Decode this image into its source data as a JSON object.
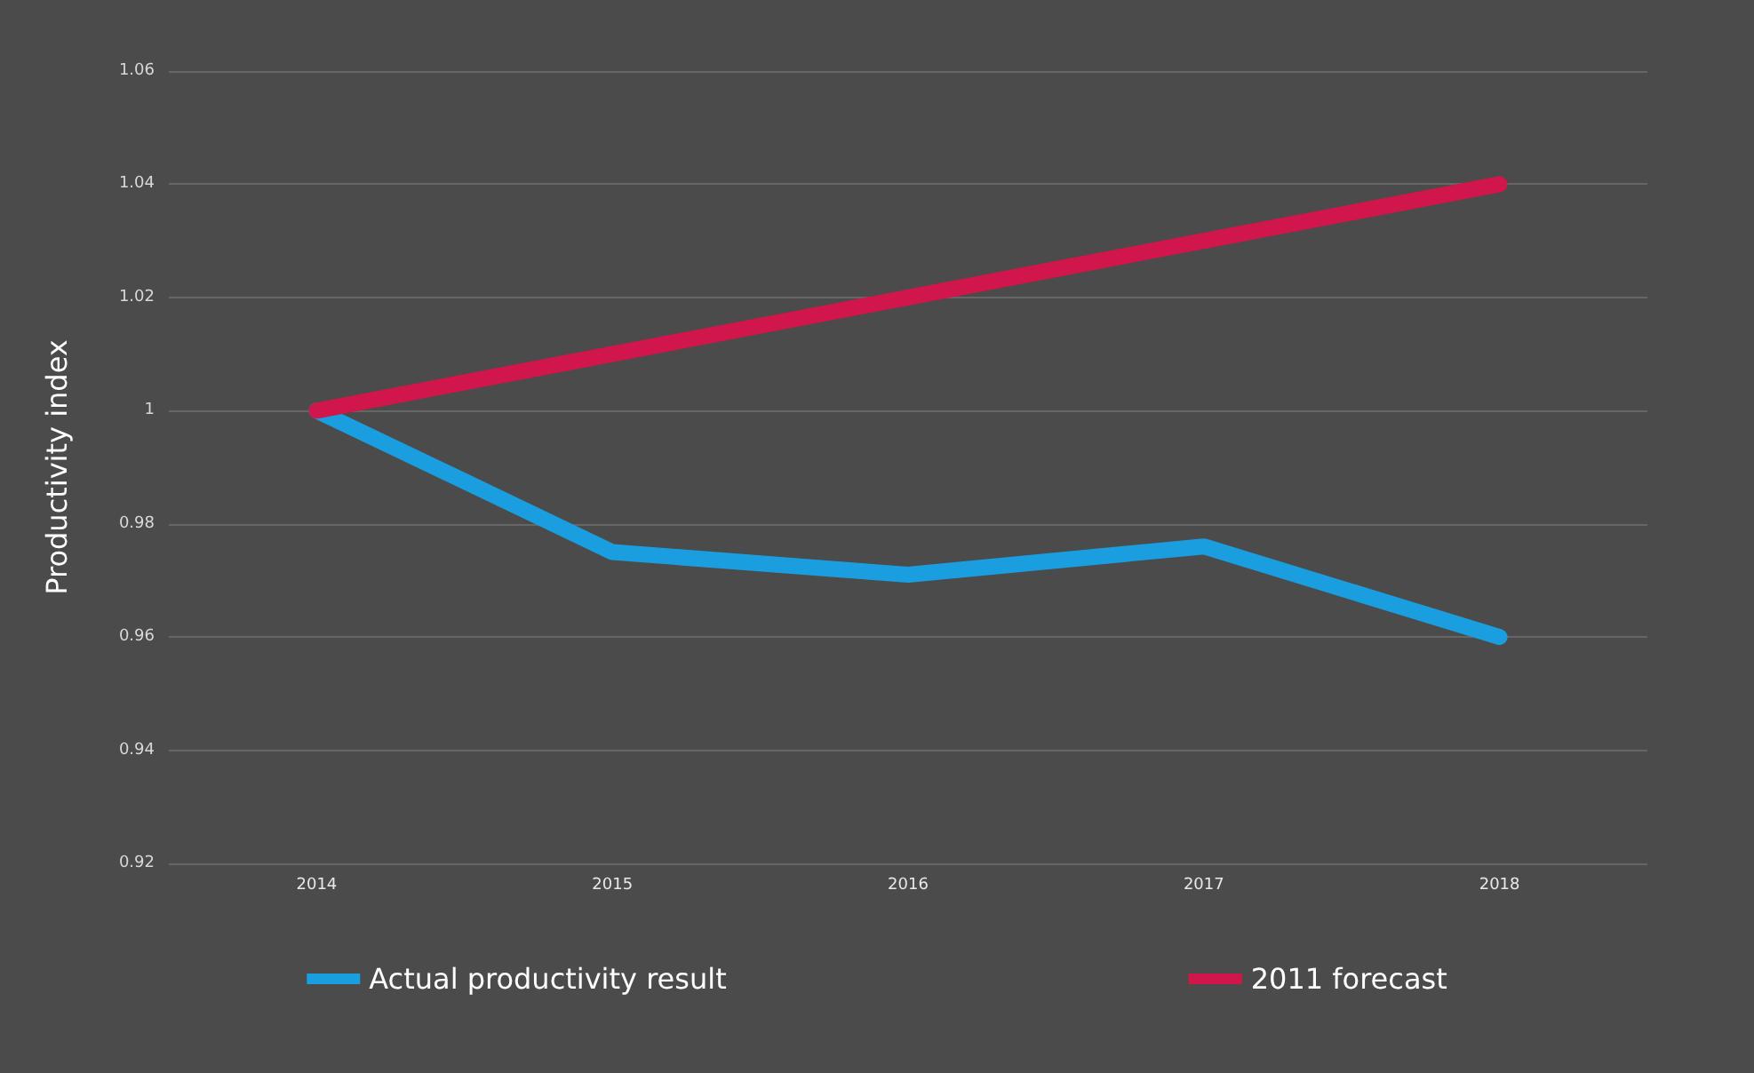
{
  "chart_data": {
    "type": "line",
    "ylabel": "Productivity index",
    "categories": [
      "2014",
      "2015",
      "2016",
      "2017",
      "2018"
    ],
    "series": [
      {
        "name": "Actual productivity result",
        "color": "#1a9ee0",
        "values": [
          1,
          0.975,
          0.971,
          0.976,
          0.96
        ]
      },
      {
        "name": "2011 forecast",
        "color": "#d0164a",
        "values": [
          1,
          1.01,
          1.02,
          1.03,
          1.04
        ]
      }
    ],
    "ylim": [
      0.92,
      1.06
    ],
    "yticks": [
      0.92,
      0.94,
      0.96,
      0.98,
      1,
      1.02,
      1.04,
      1.06
    ],
    "grid": "y",
    "legend": "bottom",
    "marker": "none",
    "line_style": "solid"
  }
}
